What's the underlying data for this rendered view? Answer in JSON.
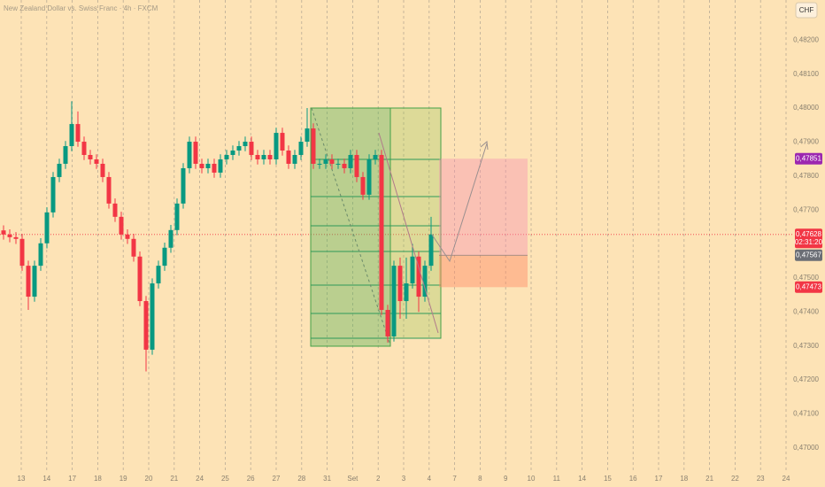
{
  "chart_data": {
    "type": "candlestick",
    "title": "New Zealand Dollar vs. Swiss Franc · 4h · FXCM",
    "currency": "CHF",
    "up_color": "#089981",
    "down_color": "#f23645",
    "ylim": [
      0.46937,
      0.48318
    ],
    "yticks": [
      {
        "value": 0.482,
        "label": "0,48200"
      },
      {
        "value": 0.481,
        "label": "0,48100"
      },
      {
        "value": 0.48,
        "label": "0,48000"
      },
      {
        "value": 0.479,
        "label": "0,47900"
      },
      {
        "value": 0.478,
        "label": "0,47800"
      },
      {
        "value": 0.477,
        "label": "0,47700"
      },
      {
        "value": 0.475,
        "label": "0,47500"
      },
      {
        "value": 0.474,
        "label": "0,47400"
      },
      {
        "value": 0.473,
        "label": "0,47300"
      },
      {
        "value": 0.472,
        "label": "0,47200"
      },
      {
        "value": 0.471,
        "label": "0,47100"
      },
      {
        "value": 0.47,
        "label": "0,47000"
      }
    ],
    "x_labels": [
      "13",
      "14",
      "17",
      "18",
      "19",
      "20",
      "21",
      "24",
      "25",
      "26",
      "27",
      "28",
      "31",
      "Set",
      "2",
      "3",
      "4",
      "7",
      "8",
      "9",
      "10",
      "11",
      "14",
      "15",
      "16",
      "17",
      "18",
      "21",
      "22",
      "23",
      "24"
    ],
    "open": [
      0.4764,
      0.47628,
      0.4762,
      0.47615,
      0.47536,
      0.47445,
      0.47536,
      0.47602,
      0.47693,
      0.47797,
      0.47836,
      0.47888,
      0.47953,
      0.47901,
      0.47862,
      0.47849,
      0.47836,
      0.47797,
      0.47719,
      0.4768,
      0.47628,
      0.47615,
      0.47563,
      0.47432,
      0.47289,
      0.47484,
      0.47536,
      0.47589,
      0.47641,
      0.47719,
      0.47823,
      0.47901,
      0.47836,
      0.47823,
      0.47836,
      0.4781,
      0.47849,
      0.47862,
      0.47875,
      0.47888,
      0.47901,
      0.47862,
      0.47849,
      0.47862,
      0.47849,
      0.47927,
      0.47875,
      0.47836,
      0.47862,
      0.47901,
      0.4794,
      0.47836,
      0.47836,
      0.47849,
      0.47836,
      0.47836,
      0.47823,
      0.47862,
      0.47797,
      0.47745,
      0.47849,
      0.47862,
      0.47406,
      0.47328,
      0.47536,
      0.47432,
      0.47484,
      0.47563,
      0.47445,
      0.47536
    ],
    "high": [
      0.47655,
      0.47643,
      0.47635,
      0.4763,
      0.47551,
      0.47551,
      0.47617,
      0.47708,
      0.47812,
      0.47851,
      0.47903,
      0.4802,
      0.4799,
      0.47916,
      0.47877,
      0.47864,
      0.47851,
      0.47812,
      0.47734,
      0.47695,
      0.47643,
      0.4763,
      0.47578,
      0.47447,
      0.47499,
      0.47551,
      0.47604,
      0.47656,
      0.47734,
      0.47838,
      0.47916,
      0.47916,
      0.47851,
      0.47851,
      0.47851,
      0.47864,
      0.47877,
      0.4789,
      0.47903,
      0.47916,
      0.47916,
      0.47877,
      0.47877,
      0.47877,
      0.47942,
      0.47942,
      0.4789,
      0.47877,
      0.47916,
      0.48,
      0.47955,
      0.47851,
      0.47864,
      0.47864,
      0.47851,
      0.47851,
      0.47877,
      0.47877,
      0.47812,
      0.47864,
      0.47877,
      0.47877,
      0.47421,
      0.47551,
      0.4756,
      0.4756,
      0.476,
      0.47578,
      0.47551,
      0.4768
    ],
    "low": [
      0.47613,
      0.47605,
      0.476,
      0.47521,
      0.47406,
      0.4743,
      0.47521,
      0.47587,
      0.47678,
      0.47782,
      0.47821,
      0.47873,
      0.47886,
      0.47847,
      0.47834,
      0.47821,
      0.47782,
      0.47704,
      0.47665,
      0.47613,
      0.476,
      0.47548,
      0.47417,
      0.47225,
      0.47274,
      0.47469,
      0.47521,
      0.47574,
      0.47626,
      0.47704,
      0.47808,
      0.47821,
      0.47808,
      0.47808,
      0.47795,
      0.47795,
      0.47834,
      0.47847,
      0.4786,
      0.47873,
      0.47847,
      0.47834,
      0.47834,
      0.47834,
      0.47834,
      0.4786,
      0.47821,
      0.47821,
      0.47847,
      0.47886,
      0.47821,
      0.47821,
      0.47821,
      0.47821,
      0.47821,
      0.47808,
      0.47808,
      0.47782,
      0.4773,
      0.4773,
      0.47834,
      0.47391,
      0.4731,
      0.47313,
      0.4738,
      0.4738,
      0.47469,
      0.474,
      0.4743,
      0.47521
    ],
    "close": [
      0.47628,
      0.4762,
      0.47615,
      0.47536,
      0.47445,
      0.47536,
      0.47602,
      0.47693,
      0.47797,
      0.47836,
      0.47888,
      0.47953,
      0.47901,
      0.47862,
      0.47849,
      0.47836,
      0.47797,
      0.47719,
      0.4768,
      0.47628,
      0.47615,
      0.47563,
      0.47432,
      0.47289,
      0.47484,
      0.47536,
      0.47589,
      0.47641,
      0.47719,
      0.47823,
      0.47901,
      0.47836,
      0.47823,
      0.47836,
      0.4781,
      0.47849,
      0.47862,
      0.47875,
      0.47888,
      0.47901,
      0.47862,
      0.47849,
      0.47862,
      0.47849,
      0.47927,
      0.47875,
      0.47836,
      0.47862,
      0.47901,
      0.4794,
      0.47836,
      0.47836,
      0.47849,
      0.47836,
      0.47836,
      0.47823,
      0.47862,
      0.47797,
      0.47745,
      0.47849,
      0.47862,
      0.47406,
      0.47328,
      0.47536,
      0.47432,
      0.47484,
      0.47563,
      0.47445,
      0.47536,
      0.47628
    ],
    "current_price": {
      "value": 0.47628,
      "label": "0,47628",
      "countdown": "02:31:20",
      "color": "#f23645"
    },
    "price_labels": [
      {
        "name": "target",
        "value": 0.47851,
        "label": "0,47851",
        "color": "#9c27b0"
      },
      {
        "name": "entry",
        "value": 0.47567,
        "label": "0,47567",
        "color": "#6b6e75"
      },
      {
        "name": "stop",
        "value": 0.47473,
        "label": "0,47473",
        "color": "#f23645"
      }
    ]
  }
}
